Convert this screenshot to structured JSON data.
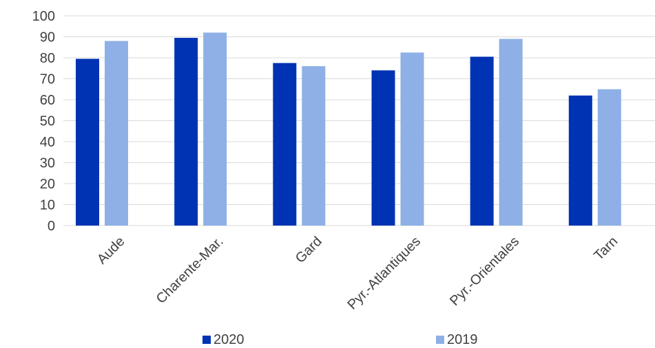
{
  "chart_data": {
    "type": "bar",
    "categories": [
      "Aude",
      "Charente-Mar.",
      "Gard",
      "Pyr.-Atlantiques",
      "Pyr.-Orientales",
      "Tarn"
    ],
    "series": [
      {
        "name": "2020",
        "color": "#0033b3",
        "values": [
          79.5,
          89.5,
          77.5,
          74,
          80.5,
          62
        ]
      },
      {
        "name": "2019",
        "color": "#8eb0e6",
        "values": [
          88,
          92,
          76,
          82.5,
          89,
          65
        ]
      }
    ],
    "yticks": [
      "0",
      "10",
      "20",
      "30",
      "40",
      "50",
      "60",
      "70",
      "80",
      "90",
      "100"
    ],
    "ylim": [
      0,
      100
    ],
    "grid": true,
    "legend": "bottom"
  }
}
